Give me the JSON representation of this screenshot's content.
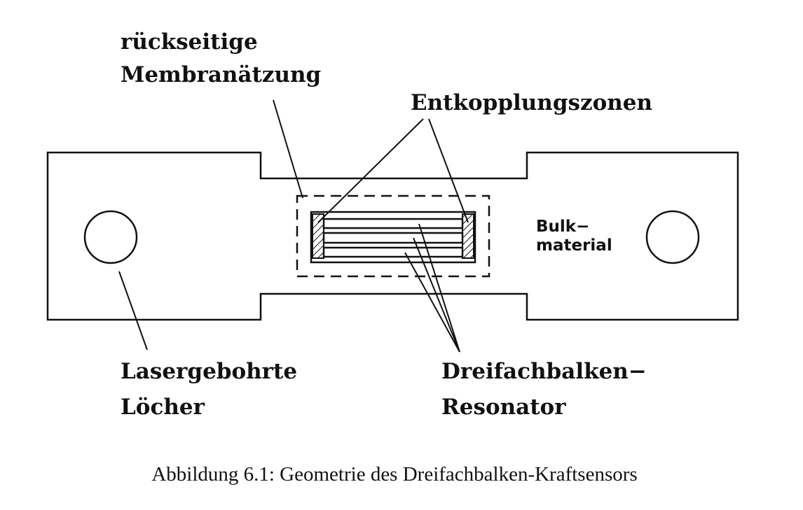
{
  "labels": {
    "membrane_line1": "rückseitige",
    "membrane_line2": "Membranätzung",
    "decoupling_zones": "Entkopplungszonen",
    "bulk_line1": "Bulk−",
    "bulk_line2": "material",
    "holes_line1": "Lasergebohrte",
    "holes_line2": "Löcher",
    "resonator_line1": "Dreifachbalken−",
    "resonator_line2": "Resonator"
  },
  "caption": "Abbildung 6.1: Geometrie des Dreifachbalken-Kraftsensors"
}
